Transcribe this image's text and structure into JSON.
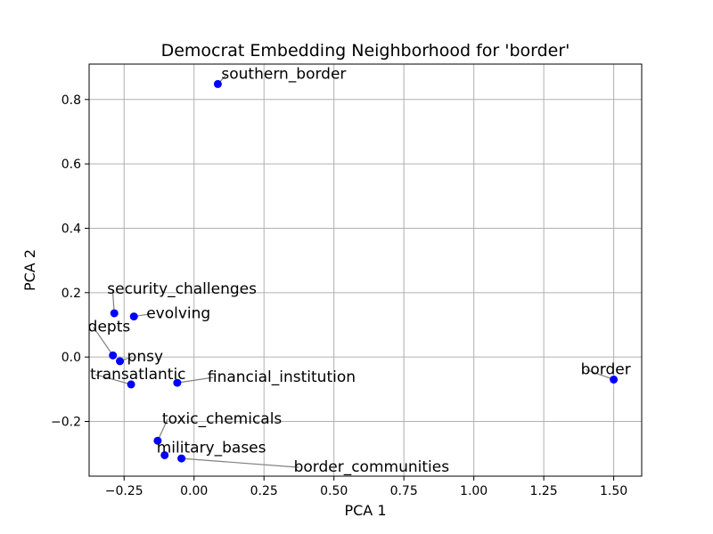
{
  "chart_data": {
    "type": "scatter",
    "title": "Democrat Embedding Neighborhood for 'border'",
    "xlabel": "PCA 1",
    "ylabel": "PCA 2",
    "xlim": [
      -0.375,
      1.6
    ],
    "ylim": [
      -0.37,
      0.91
    ],
    "grid": true,
    "point_color": "#0000ff",
    "leader_color": "#808080",
    "x_ticks": [
      {
        "value": -0.25,
        "label": "−0.25"
      },
      {
        "value": 0.0,
        "label": "0.00"
      },
      {
        "value": 0.25,
        "label": "0.25"
      },
      {
        "value": 0.5,
        "label": "0.50"
      },
      {
        "value": 0.75,
        "label": "0.75"
      },
      {
        "value": 1.0,
        "label": "1.00"
      },
      {
        "value": 1.25,
        "label": "1.25"
      },
      {
        "value": 1.5,
        "label": "1.50"
      }
    ],
    "y_ticks": [
      {
        "value": -0.2,
        "label": "−0.2"
      },
      {
        "value": 0.0,
        "label": "0.0"
      },
      {
        "value": 0.2,
        "label": "0.2"
      },
      {
        "value": 0.4,
        "label": "0.4"
      },
      {
        "value": 0.6,
        "label": "0.6"
      },
      {
        "value": 0.8,
        "label": "0.8"
      }
    ],
    "points": [
      {
        "label": "southern_border",
        "x": 0.085,
        "y": 0.848
      },
      {
        "label": "security_challenges",
        "x": -0.285,
        "y": 0.136
      },
      {
        "label": "evolving",
        "x": -0.215,
        "y": 0.126
      },
      {
        "label": "depts",
        "x": -0.29,
        "y": 0.005
      },
      {
        "label": "pnsy",
        "x": -0.265,
        "y": -0.013
      },
      {
        "label": "transatlantic",
        "x": -0.225,
        "y": -0.085
      },
      {
        "label": "financial_institution",
        "x": -0.06,
        "y": -0.08
      },
      {
        "label": "border",
        "x": 1.5,
        "y": -0.07
      },
      {
        "label": "toxic_chemicals",
        "x": -0.13,
        "y": -0.26
      },
      {
        "label": "military_bases",
        "x": -0.105,
        "y": -0.305
      },
      {
        "label": "border_communities",
        "x": -0.045,
        "y": -0.315
      }
    ]
  }
}
